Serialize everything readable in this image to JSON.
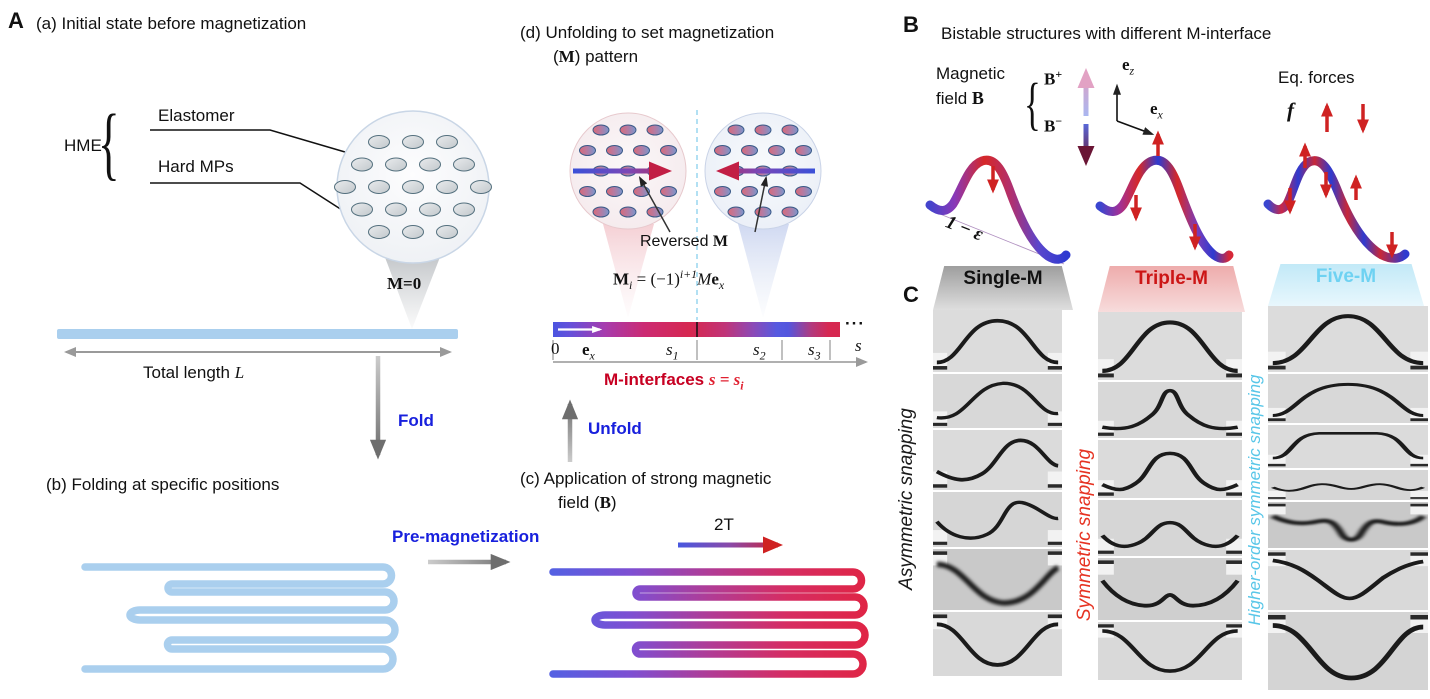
{
  "colors": {
    "action_blue": "#1820dd",
    "crimson": "#c70022",
    "light_blue_strip": "#aacfee",
    "red_arrow": "#cf2222",
    "single_m_text": "#111111",
    "triple_m_text": "#cc1616",
    "five_m_text": "#6ed2f2",
    "asym_label": "#1a1a1a",
    "sym_label": "#e63322",
    "higher_label": "#58c6e8"
  },
  "panelA": {
    "label": "A",
    "a_title": "(a) Initial state before magnetization",
    "hme": "HME",
    "elastomer": "Elastomer",
    "hard_mps": "Hard MPs",
    "m0": "M=0",
    "total_length": "Total length ",
    "total_length_var": "L",
    "fold": "Fold",
    "b_title": "(b) Folding at specific positions",
    "premag": "Pre-magnetization",
    "c_title_line1": "(c) Application of strong magnetic",
    "c_title_line2_pre": "field (",
    "c_title_line2_b": "B",
    "c_title_line2_post": ")",
    "field_2t": "2T",
    "d_title_line1": "(d) Unfolding to set magnetization",
    "d_title_line2_pre": "(",
    "d_title_line2_m": "M",
    "d_title_line2_post": ") pattern",
    "reversed_pre": "Reversed ",
    "reversed_m": "M",
    "formula": {
      "M": "M",
      "i": "i",
      "eq": " = (−1)",
      "exp": "i+1",
      "coef": "M",
      "e": "e",
      "x": "x"
    },
    "colorbar": {
      "zero": "0",
      "e": "e",
      "e_sub": "x",
      "s1": "s",
      "s1_sub": "1",
      "s2": "s",
      "s2_sub": "2",
      "s3": "s",
      "s3_sub": "3",
      "s_axis": "s",
      "dots": "···"
    },
    "m_interfaces_label": "M-interfaces ",
    "m_interfaces_math": "s = s",
    "m_interfaces_sub": "i",
    "unfold": "Unfold"
  },
  "panelB": {
    "label": "B",
    "title": "Bistable structures with different M-interface",
    "magnetic": "Magnetic",
    "field": "field ",
    "B": "B",
    "b_plus": "B",
    "b_plus_sup": "+",
    "b_minus": "B",
    "b_minus_sup": "−",
    "ez": "e",
    "ez_sub": "z",
    "ex": "e",
    "ex_sub": "x",
    "eq_forces": "Eq. forces",
    "f": "f",
    "one_minus_eps": "1 − ε"
  },
  "panelC": {
    "label": "C",
    "columns": [
      {
        "header": "Single-M",
        "side_label": "Asymmetric snapping",
        "frames": [
          "up-bump",
          "up-bump-right",
          "s-curve",
          "s-curve-steep",
          "down-bump-blur",
          "down-bump"
        ]
      },
      {
        "header": "Triple-M",
        "side_label": "Symmetric snapping",
        "frames": [
          "sym-up-bump",
          "sym-narrow-peak",
          "m-shape",
          "w-center-bump",
          "shallow-w",
          "sym-down-bump"
        ]
      },
      {
        "header": "Five-M",
        "side_label": "Higher-order symmetric snapping",
        "frames": [
          "ho-up-bump",
          "ho-dome",
          "ho-flat-top",
          "ho-ripple",
          "ho-ripple-dip-blur",
          "ho-down-v",
          "ho-down-bump"
        ]
      }
    ]
  }
}
